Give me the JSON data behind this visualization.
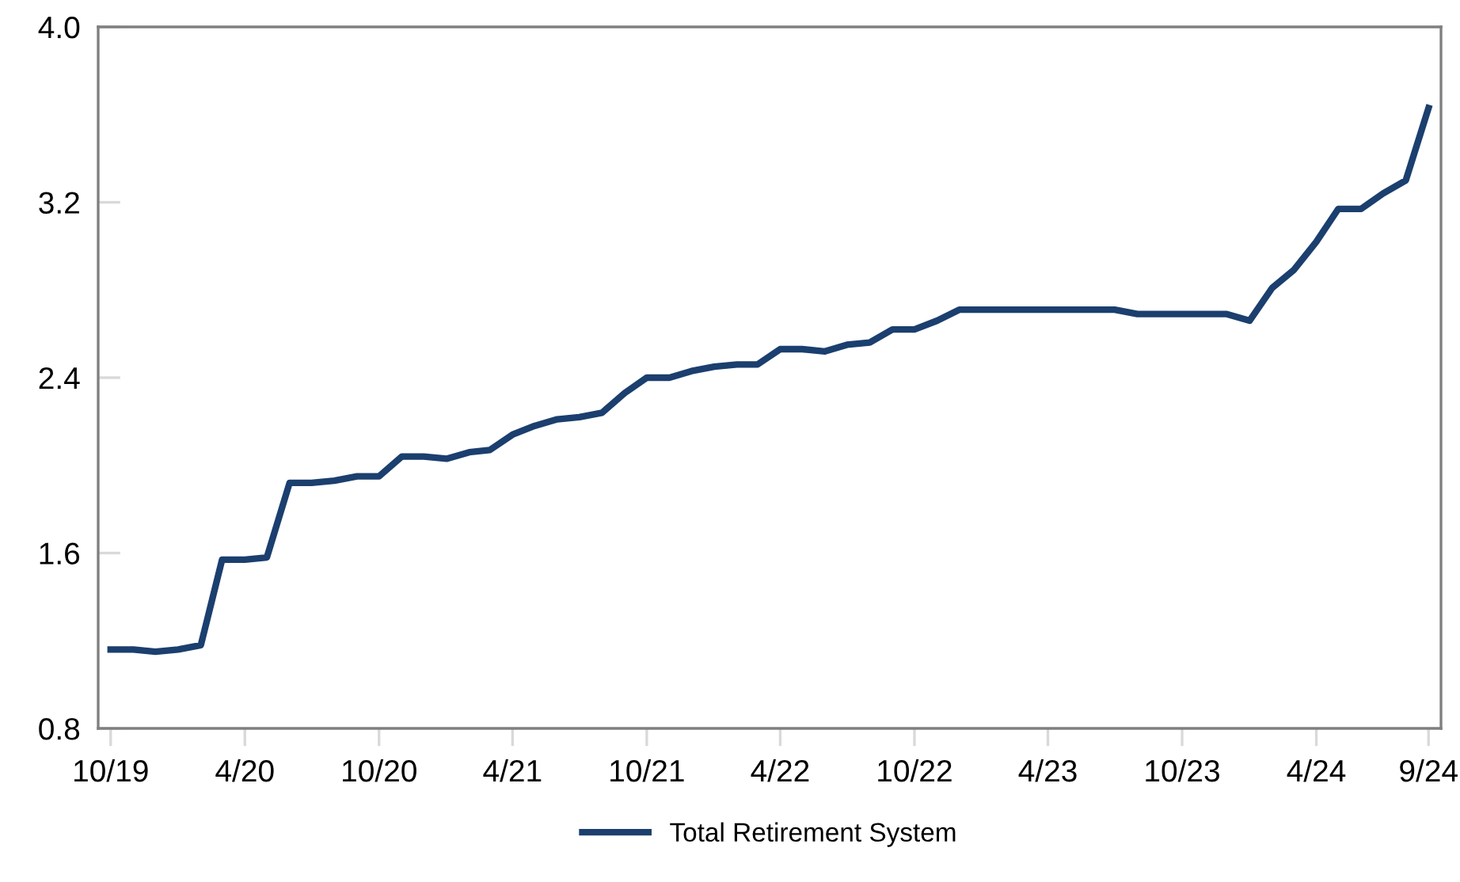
{
  "chart_data": {
    "type": "line",
    "x": [
      "2019-10",
      "2019-11",
      "2019-12",
      "2020-01",
      "2020-02",
      "2020-03",
      "2020-04",
      "2020-05",
      "2020-06",
      "2020-07",
      "2020-08",
      "2020-09",
      "2020-10",
      "2020-11",
      "2020-12",
      "2021-01",
      "2021-02",
      "2021-03",
      "2021-04",
      "2021-05",
      "2021-06",
      "2021-07",
      "2021-08",
      "2021-09",
      "2021-10",
      "2021-11",
      "2021-12",
      "2022-01",
      "2022-02",
      "2022-03",
      "2022-04",
      "2022-05",
      "2022-06",
      "2022-07",
      "2022-08",
      "2022-09",
      "2022-10",
      "2022-11",
      "2022-12",
      "2023-01",
      "2023-02",
      "2023-03",
      "2023-04",
      "2023-05",
      "2023-06",
      "2023-07",
      "2023-08",
      "2023-09",
      "2023-10",
      "2023-11",
      "2023-12",
      "2024-01",
      "2024-02",
      "2024-03",
      "2024-04",
      "2024-05",
      "2024-06",
      "2024-07",
      "2024-08",
      "2024-09"
    ],
    "series": [
      {
        "name": "Total Retirement System",
        "color": "#1b3f6e",
        "values": [
          1.16,
          1.16,
          1.15,
          1.16,
          1.18,
          1.57,
          1.57,
          1.58,
          1.92,
          1.92,
          1.93,
          1.95,
          1.95,
          2.04,
          2.04,
          2.03,
          2.06,
          2.07,
          2.14,
          2.18,
          2.21,
          2.22,
          2.24,
          2.33,
          2.4,
          2.4,
          2.43,
          2.45,
          2.46,
          2.46,
          2.53,
          2.53,
          2.52,
          2.55,
          2.56,
          2.62,
          2.62,
          2.66,
          2.71,
          2.71,
          2.71,
          2.71,
          2.71,
          2.71,
          2.71,
          2.71,
          2.69,
          2.69,
          2.69,
          2.69,
          2.69,
          2.66,
          2.81,
          2.89,
          3.02,
          3.17,
          3.17,
          3.24,
          3.3,
          3.63
        ]
      }
    ],
    "xlim": [
      "2019-09-14",
      "2024-09-18"
    ],
    "xticks": [
      {
        "value": "2019-10",
        "label": "10/19"
      },
      {
        "value": "2020-04",
        "label": "4/20"
      },
      {
        "value": "2020-10",
        "label": "10/20"
      },
      {
        "value": "2021-04",
        "label": "4/21"
      },
      {
        "value": "2021-10",
        "label": "10/21"
      },
      {
        "value": "2022-04",
        "label": "4/22"
      },
      {
        "value": "2022-10",
        "label": "10/22"
      },
      {
        "value": "2023-04",
        "label": "4/23"
      },
      {
        "value": "2023-10",
        "label": "10/23"
      },
      {
        "value": "2024-04",
        "label": "4/24"
      },
      {
        "value": "2024-09",
        "label": "9/24"
      }
    ],
    "ylim": [
      0.8,
      4.0
    ],
    "yticks": [
      {
        "value": 0.8,
        "label": "0.8"
      },
      {
        "value": 1.6,
        "label": "1.6"
      },
      {
        "value": 2.4,
        "label": "2.4"
      },
      {
        "value": 3.2,
        "label": "3.2"
      },
      {
        "value": 4.0,
        "label": "4.0"
      }
    ],
    "grid": false,
    "legend": "bottom",
    "marker": "none",
    "line_style": "solid"
  }
}
